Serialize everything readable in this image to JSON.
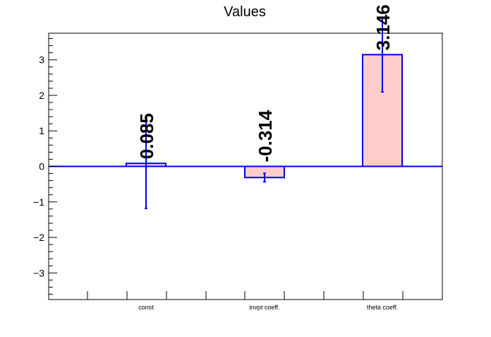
{
  "chart_data": {
    "type": "bar",
    "title": "Values",
    "xlabel": "",
    "ylabel": "",
    "categories": [
      "const",
      "invpt coeff.",
      "theta coeff."
    ],
    "values": [
      0.085,
      -0.314,
      3.146
    ],
    "errors": [
      1.27,
      0.12,
      1.05
    ],
    "value_labels": [
      "0.085",
      "-0.314",
      "3.146"
    ],
    "ylim": [
      -3.75,
      3.75
    ],
    "yticks": [
      -3,
      -2,
      -1,
      0,
      1,
      2,
      3
    ],
    "ytick_labels": [
      "−3",
      "−2",
      "−1",
      "0",
      "1",
      "2",
      "3"
    ],
    "grid": false,
    "legend": "none",
    "colors": {
      "bar_fill": "#ffcccc",
      "bar_edge": "#0000ee",
      "error_bar": "#0000ee",
      "zero_line": "#0000ee",
      "axis": "#000000"
    }
  }
}
